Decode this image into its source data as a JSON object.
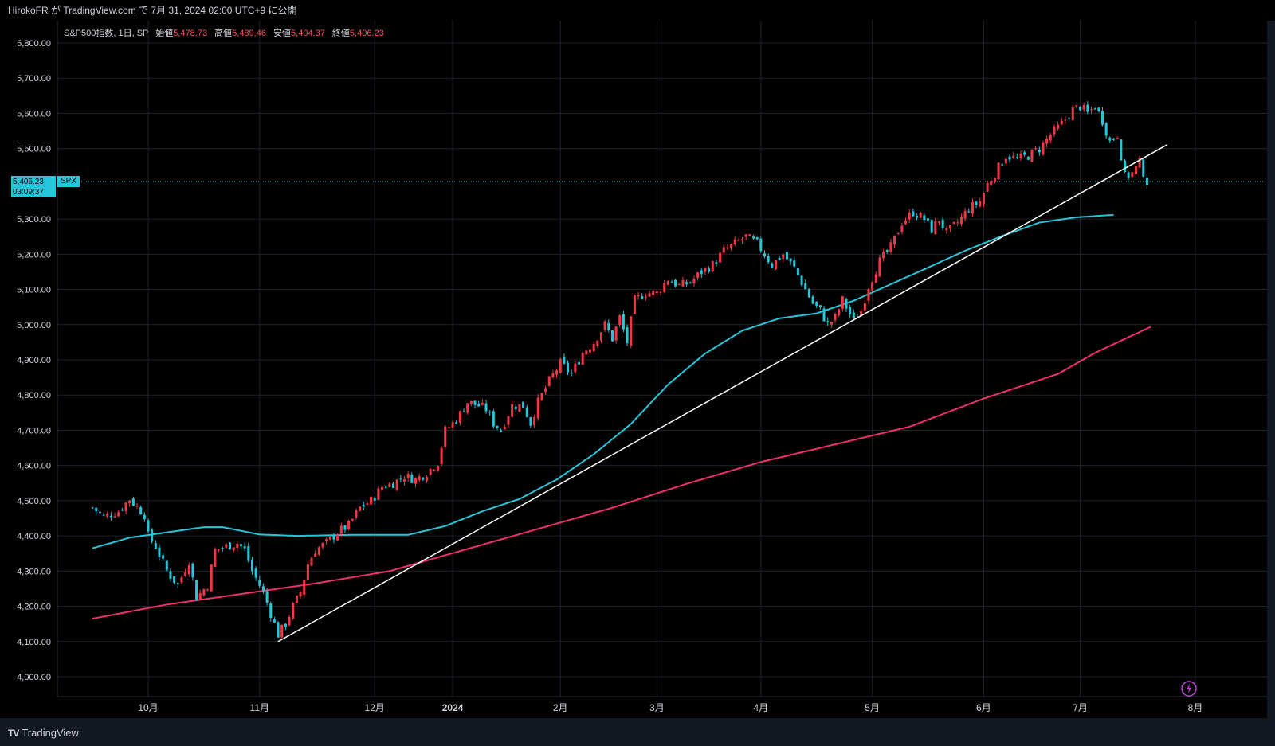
{
  "header": {
    "publish_info": "HirokoFR が TradingView.com で 7月 31, 2024 02:00 UTC+9 に公開"
  },
  "legend": {
    "title": "S&P500指数, 1日, SP",
    "open_label": "始値",
    "open_value": "5,478.73",
    "high_label": "高値",
    "high_value": "5,489.46",
    "low_label": "安値",
    "low_value": "5,404.37",
    "close_label": "終値",
    "close_value": "5,406.23"
  },
  "price_tag": {
    "price": "5,406.23",
    "countdown": "03:09:37",
    "symbol": "SPX"
  },
  "footer": {
    "brand": "TradingView",
    "brand_logo": "TV"
  },
  "colors": {
    "up": "#f23645",
    "down": "#26c6da",
    "ma_fast": "#26c6da",
    "ma_slow": "#f0306a",
    "trendline": "#ffffff",
    "grid": "#1e222d"
  },
  "chart_data": {
    "type": "candlestick",
    "ylim": [
      3960,
      5840
    ],
    "y_ticks": [
      "4,000.00",
      "4,100.00",
      "4,200.00",
      "4,300.00",
      "4,400.00",
      "4,500.00",
      "4,600.00",
      "4,700.00",
      "4,800.00",
      "4,900.00",
      "5,000.00",
      "5,100.00",
      "5,200.00",
      "5,300.00",
      "5,500.00",
      "5,600.00",
      "5,700.00",
      "5,800.00"
    ],
    "y_tick_values": [
      4000,
      4100,
      4200,
      4300,
      4400,
      4500,
      4600,
      4700,
      4800,
      4900,
      5000,
      5100,
      5200,
      5300,
      5500,
      5600,
      5700,
      5800
    ],
    "x_labels": [
      "10月",
      "11月",
      "12月",
      "2024",
      "2月",
      "3月",
      "4月",
      "5月",
      "6月",
      "7月",
      "8月"
    ],
    "x_label_bar_index": [
      15,
      45,
      76,
      97,
      126,
      152,
      180,
      210,
      240,
      266,
      297
    ],
    "num_bars": 297,
    "close_anchors": [
      [
        0,
        4480
      ],
      [
        3,
        4455
      ],
      [
        7,
        4470
      ],
      [
        10,
        4505
      ],
      [
        14,
        4460
      ],
      [
        15,
        4400
      ],
      [
        17,
        4370
      ],
      [
        20,
        4300
      ],
      [
        23,
        4260
      ],
      [
        26,
        4330
      ],
      [
        28,
        4225
      ],
      [
        31,
        4260
      ],
      [
        33,
        4360
      ],
      [
        36,
        4370
      ],
      [
        39,
        4380
      ],
      [
        41,
        4360
      ],
      [
        43,
        4300
      ],
      [
        46,
        4240
      ],
      [
        48,
        4180
      ],
      [
        50,
        4120
      ],
      [
        52,
        4150
      ],
      [
        54,
        4200
      ],
      [
        56,
        4240
      ],
      [
        58,
        4320
      ],
      [
        60,
        4360
      ],
      [
        63,
        4380
      ],
      [
        66,
        4410
      ],
      [
        69,
        4430
      ],
      [
        72,
        4480
      ],
      [
        75,
        4500
      ],
      [
        78,
        4540
      ],
      [
        81,
        4550
      ],
      [
        84,
        4570
      ],
      [
        87,
        4560
      ],
      [
        90,
        4580
      ],
      [
        93,
        4610
      ],
      [
        95,
        4700
      ],
      [
        98,
        4730
      ],
      [
        101,
        4780
      ],
      [
        104,
        4770
      ],
      [
        106,
        4760
      ],
      [
        108,
        4720
      ],
      [
        110,
        4700
      ],
      [
        113,
        4770
      ],
      [
        116,
        4770
      ],
      [
        118,
        4720
      ],
      [
        120,
        4780
      ],
      [
        123,
        4840
      ],
      [
        126,
        4890
      ],
      [
        129,
        4860
      ],
      [
        132,
        4920
      ],
      [
        135,
        4950
      ],
      [
        138,
        5000
      ],
      [
        140,
        4960
      ],
      [
        142,
        5020
      ],
      [
        144,
        4950
      ],
      [
        146,
        5070
      ],
      [
        149,
        5090
      ],
      [
        152,
        5090
      ],
      [
        155,
        5130
      ],
      [
        158,
        5110
      ],
      [
        161,
        5120
      ],
      [
        164,
        5150
      ],
      [
        167,
        5170
      ],
      [
        170,
        5210
      ],
      [
        173,
        5230
      ],
      [
        176,
        5250
      ],
      [
        179,
        5230
      ],
      [
        181,
        5200
      ],
      [
        183,
        5170
      ],
      [
        186,
        5200
      ],
      [
        189,
        5160
      ],
      [
        192,
        5100
      ],
      [
        194,
        5060
      ],
      [
        196,
        5040
      ],
      [
        198,
        5000
      ],
      [
        200,
        5020
      ],
      [
        202,
        5070
      ],
      [
        205,
        5010
      ],
      [
        207,
        5040
      ],
      [
        209,
        5110
      ],
      [
        212,
        5180
      ],
      [
        215,
        5220
      ],
      [
        218,
        5290
      ],
      [
        221,
        5320
      ],
      [
        224,
        5300
      ],
      [
        226,
        5270
      ],
      [
        228,
        5300
      ],
      [
        230,
        5260
      ],
      [
        233,
        5290
      ],
      [
        236,
        5330
      ],
      [
        239,
        5350
      ],
      [
        241,
        5400
      ],
      [
        243,
        5430
      ],
      [
        246,
        5480
      ],
      [
        249,
        5470
      ],
      [
        252,
        5480
      ],
      [
        255,
        5500
      ],
      [
        258,
        5540
      ],
      [
        261,
        5570
      ],
      [
        264,
        5610
      ],
      [
        266,
        5620
      ],
      [
        268,
        5600
      ],
      [
        270,
        5620
      ],
      [
        272,
        5580
      ],
      [
        274,
        5520
      ],
      [
        276,
        5540
      ],
      [
        278,
        5420
      ],
      [
        280,
        5430
      ],
      [
        282,
        5460
      ],
      [
        284,
        5406
      ]
    ],
    "volatility": 14,
    "ma_fast": [
      [
        0,
        4365
      ],
      [
        10,
        4395
      ],
      [
        20,
        4410
      ],
      [
        30,
        4425
      ],
      [
        35,
        4425
      ],
      [
        45,
        4404
      ],
      [
        55,
        4400
      ],
      [
        70,
        4403
      ],
      [
        85,
        4403
      ],
      [
        95,
        4428
      ],
      [
        105,
        4470
      ],
      [
        115,
        4505
      ],
      [
        125,
        4560
      ],
      [
        135,
        4632
      ],
      [
        145,
        4718
      ],
      [
        155,
        4830
      ],
      [
        165,
        4918
      ],
      [
        175,
        4983
      ],
      [
        185,
        5018
      ],
      [
        195,
        5032
      ],
      [
        205,
        5068
      ],
      [
        215,
        5115
      ],
      [
        225,
        5162
      ],
      [
        235,
        5210
      ],
      [
        245,
        5252
      ],
      [
        255,
        5290
      ],
      [
        265,
        5305
      ],
      [
        275,
        5312
      ]
    ],
    "ma_slow": [
      [
        0,
        4165
      ],
      [
        20,
        4205
      ],
      [
        40,
        4235
      ],
      [
        60,
        4265
      ],
      [
        80,
        4300
      ],
      [
        100,
        4360
      ],
      [
        120,
        4420
      ],
      [
        140,
        4480
      ],
      [
        160,
        4548
      ],
      [
        180,
        4610
      ],
      [
        200,
        4660
      ],
      [
        220,
        4710
      ],
      [
        240,
        4790
      ],
      [
        260,
        4860
      ],
      [
        270,
        4920
      ],
      [
        285,
        4994
      ]
    ],
    "trendline": [
      [
        50,
        4100
      ],
      [
        284,
        5470
      ]
    ]
  }
}
